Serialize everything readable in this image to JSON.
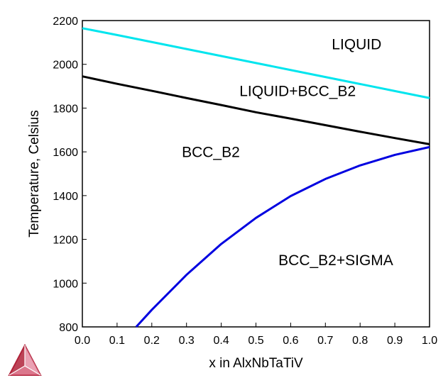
{
  "chart_data": {
    "type": "line",
    "xlabel": "x in AlxNbTaTiV",
    "ylabel": "Temperature, Celsius",
    "xlim": [
      0.0,
      1.0
    ],
    "ylim": [
      800,
      2200
    ],
    "x_ticks": [
      "0.0",
      "0.1",
      "0.2",
      "0.3",
      "0.4",
      "0.5",
      "0.6",
      "0.7",
      "0.8",
      "0.9",
      "1.0"
    ],
    "y_ticks": [
      "800",
      "1000",
      "1200",
      "1400",
      "1600",
      "1800",
      "2000",
      "2200"
    ],
    "grid": false,
    "legend": "none",
    "series": [
      {
        "color": "#00e5ee",
        "x": [
          0.0,
          0.1,
          0.2,
          0.3,
          0.4,
          0.5,
          0.6,
          0.7,
          0.8,
          0.9,
          1.0
        ],
        "y": [
          2165,
          2134,
          2102,
          2070,
          2038,
          2006,
          1974,
          1942,
          1910,
          1878,
          1846
        ]
      },
      {
        "color": "#000000",
        "x": [
          0.0,
          0.1,
          0.2,
          0.3,
          0.4,
          0.5,
          0.6,
          0.7,
          0.8,
          0.9,
          1.0
        ],
        "y": [
          1945,
          1911,
          1879,
          1846,
          1814,
          1781,
          1752,
          1722,
          1692,
          1663,
          1635
        ]
      },
      {
        "color": "#0000e0",
        "x": [
          0.155,
          0.2,
          0.3,
          0.4,
          0.5,
          0.6,
          0.7,
          0.8,
          0.9,
          1.0
        ],
        "y": [
          800,
          878,
          1038,
          1179,
          1298,
          1398,
          1476,
          1538,
          1586,
          1622
        ]
      }
    ],
    "annotations": [
      {
        "text": "LIQUID",
        "x": 0.79,
        "y": 2068
      },
      {
        "text": "LIQUID+BCC_B2",
        "x": 0.62,
        "y": 1855
      },
      {
        "text": "BCC_B2",
        "x": 0.37,
        "y": 1576
      },
      {
        "text": "BCC_B2+SIGMA",
        "x": 0.73,
        "y": 1082
      }
    ]
  },
  "logo": {
    "name": "thermo-calc-logo-icon",
    "color": "#b0223a"
  }
}
